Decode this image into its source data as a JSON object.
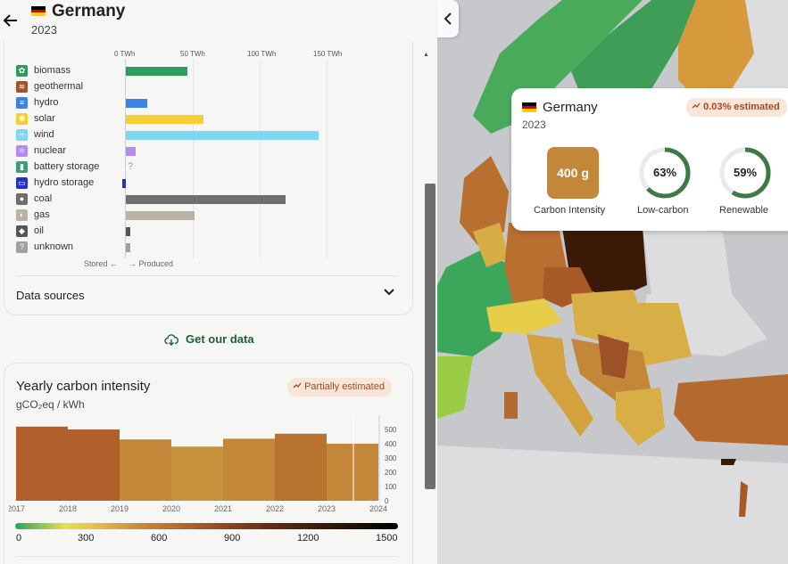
{
  "header": {
    "back_icon": "arrow-left-icon",
    "country": "Germany",
    "year": "2023",
    "flag_colors": [
      "#000000",
      "#dd0000",
      "#ffce00"
    ]
  },
  "production": {
    "axis_ticks": [
      "0 TWh",
      "50 TWh",
      "100 TWh",
      "150 TWh"
    ],
    "axis_max_twh": 200,
    "sources": [
      {
        "label": "biomass",
        "icon": "biomass-icon",
        "color": "#2e9c5e",
        "value": 46
      },
      {
        "label": "geothermal",
        "icon": "geothermal-icon",
        "color": "#a0522d",
        "value": 0
      },
      {
        "label": "hydro",
        "icon": "hydro-icon",
        "color": "#3b82e6",
        "value": 16
      },
      {
        "label": "solar",
        "icon": "solar-icon",
        "color": "#f8cf30",
        "value": 58
      },
      {
        "label": "wind",
        "icon": "wind-icon",
        "color": "#7fd7f4",
        "value": 144
      },
      {
        "label": "nuclear",
        "icon": "nuclear-icon",
        "color": "#b48cf0",
        "value": 7
      },
      {
        "label": "battery storage",
        "icon": "battery-storage-icon",
        "color": "#3e9b7a",
        "value": null
      },
      {
        "label": "hydro storage",
        "icon": "hydro-storage-icon",
        "color": "#2432c9",
        "value": -3
      },
      {
        "label": "coal",
        "icon": "coal-icon",
        "color": "#6e6e6e",
        "value": 119
      },
      {
        "label": "gas",
        "icon": "gas-icon",
        "color": "#b9b2a4",
        "value": 51
      },
      {
        "label": "oil",
        "icon": "oil-icon",
        "color": "#555555",
        "value": 3
      },
      {
        "label": "unknown",
        "icon": "unknown-icon",
        "color": "#a0a0a0",
        "value": 3
      }
    ],
    "stored_label": "Stored",
    "produced_label": "Produced",
    "data_sources_label": "Data sources"
  },
  "get_data_label": "Get our data",
  "yearly": {
    "title": "Yearly carbon intensity",
    "unit": "gCO₂eq / kWh",
    "badge": "Partially estimated",
    "scale_labels": [
      "0",
      "300",
      "600",
      "900",
      "1200",
      "1500"
    ]
  },
  "chart_data": {
    "type": "bar",
    "categories": [
      "2017",
      "2018",
      "2019",
      "2020",
      "2021",
      "2022",
      "2023"
    ],
    "x_tick_labels": [
      "2017",
      "2018",
      "2019",
      "2020",
      "2021",
      "2022",
      "2023",
      "2024"
    ],
    "values": [
      520,
      500,
      430,
      380,
      435,
      470,
      400
    ],
    "colors": [
      "#b0602a",
      "#b0602a",
      "#c4873a",
      "#c8913b",
      "#c4873a",
      "#b8722f",
      "#c4873a"
    ],
    "y_ticks": [
      0,
      100,
      200,
      300,
      400,
      500
    ],
    "ylim": [
      0,
      600
    ],
    "title": "Yearly carbon intensity",
    "ylabel": "gCO₂eq / kWh"
  },
  "tooltip": {
    "country": "Germany",
    "year": "2023",
    "estimated": "0.03% estimated",
    "carbon_intensity_value": "400 g",
    "carbon_intensity_label": "Carbon Intensity",
    "low_carbon_value": "63%",
    "low_carbon_fraction": 0.63,
    "low_carbon_label": "Low-carbon",
    "renewable_value": "59%",
    "renewable_fraction": 0.59,
    "renewable_label": "Renewable"
  },
  "map": {
    "collapse_icon": "chevron-left-icon"
  }
}
